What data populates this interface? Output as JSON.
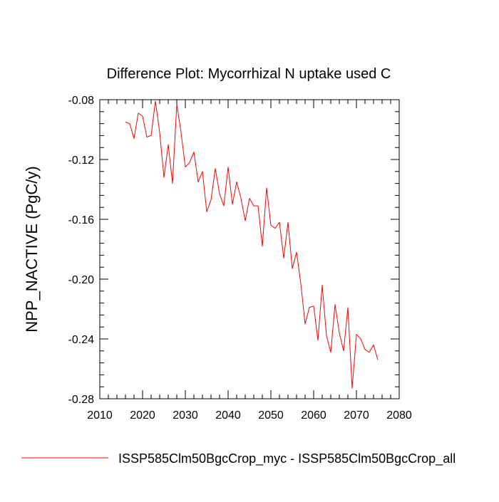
{
  "chart_data": {
    "type": "line",
    "title": "Difference Plot: Mycorrhizal N uptake used C",
    "xlabel": "",
    "ylabel": "NPP_NACTIVE  (PgC/y)",
    "xlim": [
      2010,
      2080
    ],
    "ylim": [
      -0.28,
      -0.08
    ],
    "x_ticks": [
      2010,
      2020,
      2030,
      2040,
      2050,
      2060,
      2070,
      2080
    ],
    "y_ticks": [
      -0.08,
      -0.12,
      -0.16,
      -0.2,
      -0.24,
      -0.28
    ],
    "x_tick_labels": [
      "2010",
      "2020",
      "2030",
      "2040",
      "2050",
      "2060",
      "2070",
      "2080"
    ],
    "y_tick_labels": [
      "-0.08",
      "-0.12",
      "-0.16",
      "-0.20",
      "-0.24",
      "-0.28"
    ],
    "grid": false,
    "legend_position": "bottom",
    "series": [
      {
        "name": "ISSP585Clm50BgcCrop_myc - ISSP585Clm50BgcCrop_all",
        "color": "#ff0000",
        "x": [
          2016,
          2017,
          2018,
          2019,
          2020,
          2021,
          2022,
          2023,
          2024,
          2025,
          2026,
          2027,
          2028,
          2029,
          2030,
          2031,
          2032,
          2033,
          2034,
          2035,
          2036,
          2037,
          2038,
          2039,
          2040,
          2041,
          2042,
          2043,
          2044,
          2045,
          2046,
          2047,
          2048,
          2049,
          2050,
          2051,
          2052,
          2053,
          2054,
          2055,
          2056,
          2057,
          2058,
          2059,
          2060,
          2061,
          2062,
          2063,
          2064,
          2065,
          2066,
          2067,
          2068,
          2069,
          2070,
          2071,
          2072,
          2073,
          2074,
          2075
        ],
        "values": [
          -0.095,
          -0.096,
          -0.106,
          -0.089,
          -0.091,
          -0.105,
          -0.104,
          -0.081,
          -0.102,
          -0.132,
          -0.11,
          -0.136,
          -0.083,
          -0.102,
          -0.125,
          -0.122,
          -0.115,
          -0.135,
          -0.128,
          -0.155,
          -0.147,
          -0.126,
          -0.143,
          -0.151,
          -0.125,
          -0.15,
          -0.135,
          -0.146,
          -0.161,
          -0.146,
          -0.151,
          -0.151,
          -0.178,
          -0.139,
          -0.164,
          -0.166,
          -0.162,
          -0.186,
          -0.162,
          -0.193,
          -0.182,
          -0.203,
          -0.23,
          -0.219,
          -0.218,
          -0.241,
          -0.204,
          -0.238,
          -0.249,
          -0.217,
          -0.236,
          -0.248,
          -0.219,
          -0.273,
          -0.237,
          -0.24,
          -0.247,
          -0.249,
          -0.244,
          -0.254
        ]
      }
    ]
  }
}
